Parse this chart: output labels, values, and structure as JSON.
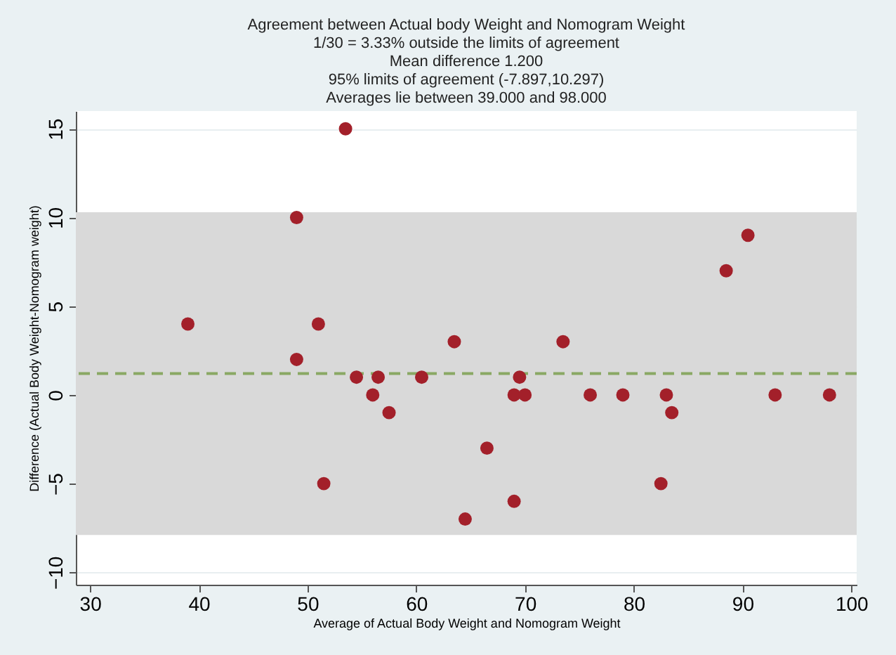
{
  "chart_data": {
    "type": "scatter",
    "title": "Agreement between Actual body Weight and Nomogram Weight",
    "subtitle": "1/30 =   3.33% outside the limits of agreement\nMean difference  1.200\n95% limits of agreement (-7.897,10.297)\nAverages lie between 39.000 and 98.000",
    "xlabel": "Average of Actual Body Weight and Nomogram Weight",
    "ylabel": "Difference (Actual Body Weight-Nomogram weight)",
    "x": [
      39,
      49,
      49,
      51,
      51.5,
      53.5,
      54.5,
      56,
      56.5,
      57.5,
      60.5,
      63.5,
      64.5,
      66.5,
      69,
      69,
      69.5,
      70,
      73.5,
      76,
      79,
      82.5,
      83,
      83.5,
      88.5,
      90.5,
      93,
      98
    ],
    "series": [
      {
        "color": "#a3202a",
        "values": [
          4,
          10,
          2,
          4,
          -5,
          15,
          1,
          0,
          1,
          -1,
          1,
          3,
          -7,
          -3,
          0,
          -6,
          1,
          0,
          3,
          0,
          0,
          -5,
          0,
          -1,
          7,
          9,
          0,
          0
        ]
      }
    ],
    "xlim": [
      28.7,
      100.5
    ],
    "xticks": [
      30,
      40,
      50,
      60,
      70,
      80,
      90,
      100
    ],
    "ylim": [
      -10.7,
      16
    ],
    "yticks": [
      -10,
      -5,
      0,
      5,
      10,
      15
    ],
    "grid": "y",
    "marker": "circle",
    "ref_lines": [
      {
        "axis": "y",
        "value": 1.2,
        "color": "#8aa864",
        "line_style": "dashed"
      }
    ],
    "bands": [
      {
        "axis": "y",
        "from": -7.897,
        "to": 10.297,
        "color": "#d9d9d9"
      }
    ]
  }
}
